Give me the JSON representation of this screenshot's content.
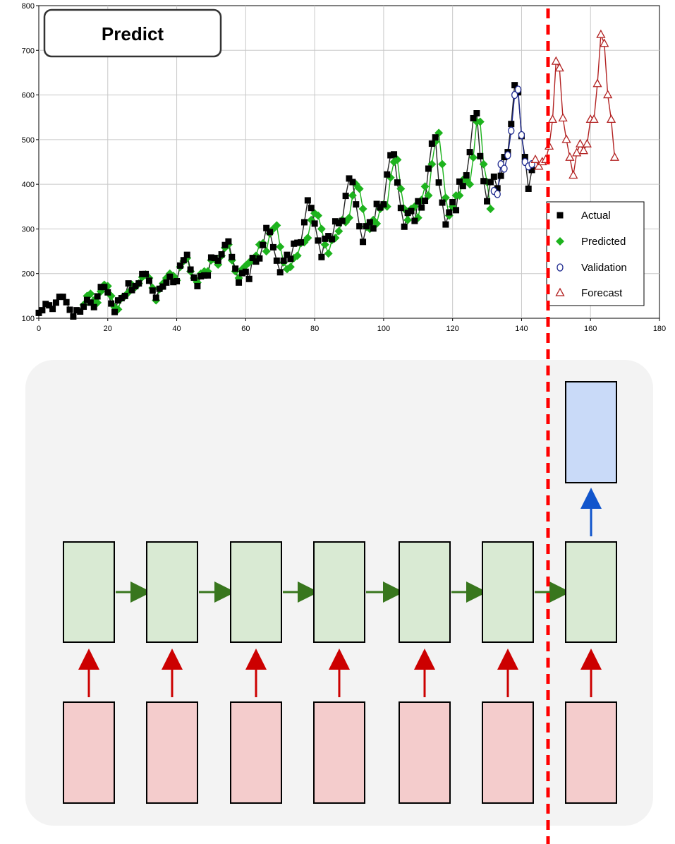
{
  "title_badge": "Predict",
  "chart_data": {
    "type": "line",
    "xlim": [
      0,
      180
    ],
    "ylim": [
      100,
      800
    ],
    "x_ticks": [
      0,
      20,
      40,
      60,
      80,
      100,
      120,
      140,
      160,
      180
    ],
    "y_ticks": [
      100,
      200,
      300,
      400,
      500,
      600,
      700,
      800
    ],
    "grid": true,
    "legend_position": "right",
    "series": [
      {
        "name": "Actual",
        "color": "#000000",
        "marker": "square",
        "x": [
          0,
          1,
          2,
          3,
          4,
          5,
          6,
          7,
          8,
          9,
          10,
          11,
          12,
          13,
          14,
          15,
          16,
          17,
          18,
          19,
          20,
          21,
          22,
          23,
          24,
          25,
          26,
          27,
          28,
          29,
          30,
          31,
          32,
          33,
          34,
          35,
          36,
          37,
          38,
          39,
          40,
          41,
          42,
          43,
          44,
          45,
          46,
          47,
          48,
          49,
          50,
          51,
          52,
          53,
          54,
          55,
          56,
          57,
          58,
          59,
          60,
          61,
          62,
          63,
          64,
          65,
          66,
          67,
          68,
          69,
          70,
          71,
          72,
          73,
          74,
          75,
          76,
          77,
          78,
          79,
          80,
          81,
          82,
          83,
          84,
          85,
          86,
          87,
          88,
          89,
          90,
          91,
          92,
          93,
          94,
          95,
          96,
          97,
          98,
          99,
          100,
          101,
          102,
          103,
          104,
          105,
          106,
          107,
          108,
          109,
          110,
          111,
          112,
          113,
          114,
          115,
          116,
          117,
          118,
          119,
          120,
          121,
          122,
          123,
          124,
          125,
          126,
          127,
          128,
          129,
          130,
          131,
          132,
          133,
          134,
          135,
          136,
          137,
          138,
          139,
          140,
          141,
          142,
          143
        ],
        "y": [
          112,
          118,
          132,
          129,
          121,
          135,
          148,
          148,
          136,
          119,
          104,
          118,
          115,
          126,
          141,
          135,
          125,
          149,
          170,
          170,
          158,
          133,
          114,
          140,
          145,
          150,
          178,
          163,
          172,
          178,
          199,
          199,
          184,
          162,
          146,
          166,
          171,
          180,
          193,
          181,
          183,
          218,
          230,
          242,
          209,
          191,
          172,
          194,
          196,
          196,
          236,
          235,
          229,
          243,
          264,
          272,
          237,
          211,
          180,
          201,
          204,
          188,
          235,
          227,
          234,
          264,
          302,
          293,
          259,
          229,
          203,
          229,
          242,
          233,
          267,
          269,
          270,
          315,
          364,
          347,
          312,
          274,
          237,
          278,
          284,
          277,
          317,
          313,
          318,
          374,
          413,
          405,
          355,
          306,
          271,
          306,
          315,
          301,
          356,
          348,
          355,
          422,
          465,
          467,
          404,
          347,
          305,
          336,
          340,
          318,
          362,
          348,
          363,
          435,
          491,
          505,
          404,
          359,
          310,
          337,
          360,
          342,
          406,
          396,
          420,
          472,
          548,
          559,
          463,
          407,
          362,
          405,
          417,
          391,
          419,
          461,
          472,
          535,
          622,
          606,
          508,
          461,
          390,
          432
        ]
      },
      {
        "name": "Predicted",
        "color": "#1db31d",
        "marker": "circle-filled",
        "x": [
          13,
          14,
          15,
          16,
          17,
          18,
          19,
          20,
          21,
          22,
          23,
          24,
          25,
          26,
          27,
          28,
          29,
          30,
          31,
          32,
          33,
          34,
          35,
          36,
          37,
          38,
          39,
          40,
          41,
          42,
          43,
          44,
          45,
          46,
          47,
          48,
          49,
          50,
          51,
          52,
          53,
          54,
          55,
          56,
          57,
          58,
          59,
          60,
          61,
          62,
          63,
          64,
          65,
          66,
          67,
          68,
          69,
          70,
          71,
          72,
          73,
          74,
          75,
          76,
          77,
          78,
          79,
          80,
          81,
          82,
          83,
          84,
          85,
          86,
          87,
          88,
          89,
          90,
          91,
          92,
          93,
          94,
          95,
          96,
          97,
          98,
          99,
          100,
          101,
          102,
          103,
          104,
          105,
          106,
          107,
          108,
          109,
          110,
          111,
          112,
          113,
          114,
          115,
          116,
          117,
          118,
          119,
          120,
          121,
          122,
          123,
          124,
          125,
          126,
          127,
          128,
          129,
          130,
          131
        ],
        "y": [
          130,
          150,
          155,
          140,
          135,
          160,
          175,
          172,
          150,
          125,
          120,
          145,
          150,
          158,
          175,
          170,
          178,
          192,
          198,
          190,
          168,
          140,
          165,
          178,
          190,
          200,
          195,
          185,
          215,
          228,
          235,
          205,
          190,
          180,
          200,
          205,
          205,
          230,
          232,
          220,
          240,
          258,
          265,
          230,
          205,
          190,
          210,
          218,
          225,
          230,
          240,
          265,
          268,
          250,
          290,
          300,
          308,
          260,
          225,
          210,
          215,
          235,
          240,
          268,
          270,
          280,
          320,
          335,
          330,
          300,
          265,
          245,
          275,
          280,
          295,
          320,
          315,
          325,
          375,
          400,
          390,
          345,
          305,
          300,
          320,
          312,
          345,
          355,
          350,
          415,
          450,
          455,
          390,
          345,
          320,
          345,
          350,
          325,
          365,
          395,
          375,
          445,
          495,
          515,
          445,
          370,
          330,
          350,
          375,
          375,
          410,
          410,
          400,
          460,
          540,
          540,
          445,
          405,
          345
        ]
      },
      {
        "name": "Validation",
        "color": "#1f2a8f",
        "marker": "diamond-open",
        "x": [
          132,
          133,
          134,
          135,
          136,
          137,
          138,
          139,
          140,
          141,
          142,
          143
        ],
        "y": [
          385,
          378,
          445,
          435,
          465,
          520,
          600,
          612,
          510,
          450,
          440,
          445
        ]
      },
      {
        "name": "Forecast",
        "color": "#b22222",
        "marker": "triangle-open",
        "x": [
          144,
          145,
          146,
          147,
          148,
          149,
          150,
          151,
          152,
          153,
          154,
          155,
          156,
          157,
          158,
          159,
          160,
          161,
          162,
          163,
          164,
          165,
          166,
          167
        ],
        "y": [
          455,
          440,
          450,
          455,
          485,
          545,
          675,
          660,
          548,
          500,
          460,
          420,
          470,
          490,
          475,
          490,
          545,
          545,
          625,
          735,
          715,
          600,
          545,
          460
        ]
      }
    ]
  },
  "diagram": {
    "sequence_length": 7,
    "colors": {
      "input_fill": "#f4cccc",
      "hidden_fill": "#d9ead3",
      "output_fill": "#c9daf8",
      "input_arrow": "#cc0000",
      "hidden_arrow": "#38761d",
      "output_arrow": "#1155cc",
      "divider": "#ff0000",
      "panel": "#f3f3f3"
    }
  }
}
